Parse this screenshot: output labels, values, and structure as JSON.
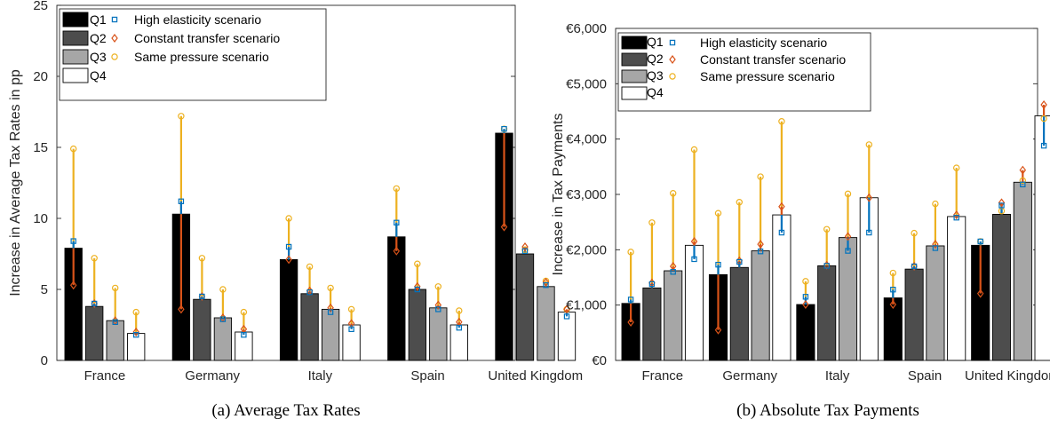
{
  "chart_data": [
    {
      "type": "bar",
      "title": "",
      "caption": "(a) Average Tax Rates",
      "xlabel": "",
      "ylabel": "Increase in Average Tax Rates in pp",
      "ylim": [
        0,
        25
      ],
      "yticks": [
        0,
        5,
        10,
        15,
        20,
        25
      ],
      "ytick_labels": [
        "0",
        "5",
        "10",
        "15",
        "20",
        "25"
      ],
      "categories": [
        "France",
        "Germany",
        "Italy",
        "Spain",
        "United Kingdom"
      ],
      "series": [
        {
          "name": "Q1",
          "values": [
            7.9,
            10.3,
            7.1,
            8.7,
            16.0
          ]
        },
        {
          "name": "Q2",
          "values": [
            3.8,
            4.3,
            4.7,
            5.0,
            7.5
          ]
        },
        {
          "name": "Q3",
          "values": [
            2.8,
            3.0,
            3.6,
            3.7,
            5.2
          ]
        },
        {
          "name": "Q4",
          "values": [
            1.9,
            2.0,
            2.5,
            2.5,
            3.4
          ]
        }
      ],
      "scenarios": [
        {
          "name": "High elasticity scenario",
          "marker": "square",
          "color": "#0072BD",
          "values": [
            [
              8.4,
              4.0,
              2.7,
              1.8
            ],
            [
              11.2,
              4.5,
              2.9,
              1.8
            ],
            [
              8.0,
              4.8,
              3.4,
              2.2
            ],
            [
              9.7,
              5.0,
              3.6,
              2.3
            ],
            [
              16.3,
              7.7,
              5.3,
              3.1
            ]
          ]
        },
        {
          "name": "Constant transfer scenario",
          "marker": "diamond",
          "color": "#D95319",
          "values": [
            [
              5.3,
              4.0,
              2.8,
              2.0
            ],
            [
              3.6,
              4.5,
              3.0,
              2.2
            ],
            [
              7.1,
              4.9,
              3.7,
              2.6
            ],
            [
              7.7,
              5.2,
              3.9,
              2.7
            ],
            [
              9.4,
              8.0,
              5.5,
              3.6
            ]
          ]
        },
        {
          "name": "Same pressure scenario",
          "marker": "circle",
          "color": "#EDB120",
          "values": [
            [
              14.9,
              7.2,
              5.1,
              3.4
            ],
            [
              17.2,
              7.2,
              5.0,
              3.4
            ],
            [
              10.0,
              6.6,
              5.1,
              3.6
            ],
            [
              12.1,
              6.8,
              5.2,
              3.5
            ],
            [
              16.3,
              7.8,
              5.6,
              3.6
            ]
          ]
        }
      ],
      "legend_position": "top-left",
      "grid": false
    },
    {
      "type": "bar",
      "title": "",
      "caption": "(b) Absolute Tax Payments",
      "xlabel": "",
      "ylabel": "Increase in Tax Payments",
      "ylim": [
        0,
        6000
      ],
      "yticks": [
        0,
        1000,
        2000,
        3000,
        4000,
        5000,
        6000
      ],
      "ytick_labels": [
        "€0",
        "€1,000",
        "€2,000",
        "€3,000",
        "€4,000",
        "€5,000",
        "€6,000"
      ],
      "categories": [
        "France",
        "Germany",
        "Italy",
        "Spain",
        "United Kingdom"
      ],
      "series": [
        {
          "name": "Q1",
          "values": [
            1030,
            1550,
            1010,
            1130,
            2080
          ]
        },
        {
          "name": "Q2",
          "values": [
            1310,
            1680,
            1710,
            1650,
            2640
          ]
        },
        {
          "name": "Q3",
          "values": [
            1620,
            1980,
            2220,
            2070,
            3220
          ]
        },
        {
          "name": "Q4",
          "values": [
            2080,
            2630,
            2940,
            2600,
            4420
          ]
        }
      ],
      "scenarios": [
        {
          "name": "High elasticity scenario",
          "marker": "square",
          "color": "#0072BD",
          "values": [
            [
              1100,
              1380,
              1600,
              1830
            ],
            [
              1730,
              1780,
              1970,
              2310
            ],
            [
              1150,
              1710,
              1980,
              2310
            ],
            [
              1280,
              1700,
              2030,
              2580
            ],
            [
              2150,
              2800,
              3180,
              3880
            ]
          ]
        },
        {
          "name": "Constant transfer scenario",
          "marker": "diamond",
          "color": "#D95319",
          "values": [
            [
              690,
              1400,
              1700,
              2150
            ],
            [
              550,
              1800,
              2100,
              2780
            ],
            [
              1010,
              1720,
              2240,
              2940
            ],
            [
              1010,
              1700,
              2100,
              2630
            ],
            [
              1210,
              2850,
              3440,
              4620
            ]
          ]
        },
        {
          "name": "Same pressure scenario",
          "marker": "circle",
          "color": "#EDB120",
          "values": [
            [
              1960,
              2490,
              3020,
              3810
            ],
            [
              2660,
              2860,
              3320,
              4320
            ],
            [
              1430,
              2370,
              3010,
              3900
            ],
            [
              1580,
              2300,
              2830,
              3480
            ],
            [
              2150,
              2700,
              3250,
              4370
            ]
          ]
        }
      ],
      "legend_position": "top-left",
      "grid": false
    }
  ],
  "colors": {
    "Q1": "#000000",
    "Q2": "#4d4d4d",
    "Q3": "#a6a6a6",
    "Q4": "#ffffff"
  }
}
